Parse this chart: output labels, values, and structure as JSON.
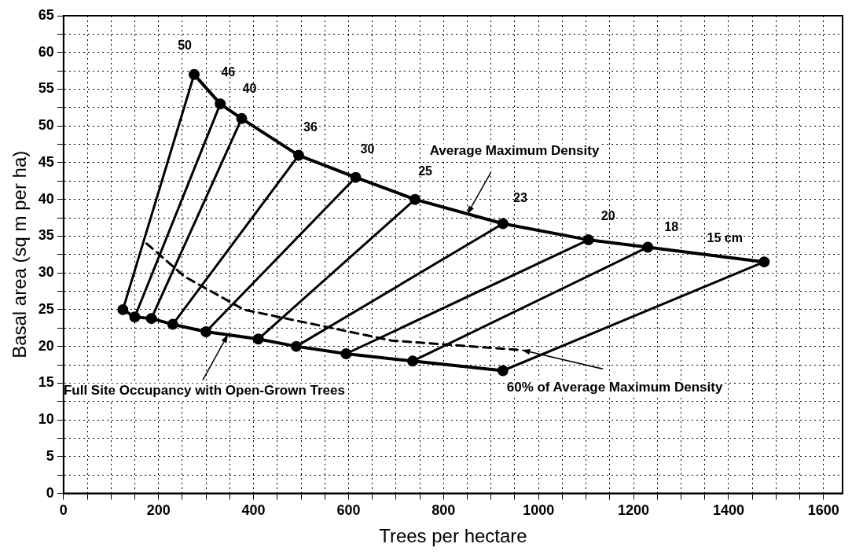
{
  "chart_data": {
    "type": "line",
    "xlabel": "Trees per hectare",
    "ylabel": "Basal area (sq m per ha)",
    "xlim": [
      0,
      1640
    ],
    "ylim": [
      0,
      65
    ],
    "xticks": [
      0,
      {
        "value": 50,
        "label": null
      },
      200,
      {
        "value": 100,
        "label": null
      },
      {
        "value": 150,
        "label": null
      },
      {
        "value": 250,
        "label": null
      },
      {
        "value": 300,
        "label": null
      },
      {
        "value": 350,
        "label": null
      },
      400,
      {
        "value": 450,
        "label": null
      },
      {
        "value": 500,
        "label": null
      },
      {
        "value": 550,
        "label": null
      },
      600,
      {
        "value": 650,
        "label": null
      },
      {
        "value": 700,
        "label": null
      },
      {
        "value": 750,
        "label": null
      },
      800,
      {
        "value": 850,
        "label": null
      },
      {
        "value": 900,
        "label": null
      },
      {
        "value": 950,
        "label": null
      },
      1000,
      {
        "value": 1050,
        "label": null
      },
      {
        "value": 1100,
        "label": null
      },
      {
        "value": 1150,
        "label": null
      },
      1200,
      {
        "value": 1250,
        "label": null
      },
      {
        "value": 1300,
        "label": null
      },
      {
        "value": 1350,
        "label": null
      },
      1400,
      {
        "value": 1450,
        "label": null
      },
      {
        "value": 1500,
        "label": null
      },
      {
        "value": 1550,
        "label": null
      },
      1600
    ],
    "yticks": [
      0,
      {
        "value": 2.5,
        "label": null
      },
      5,
      {
        "value": 7.5,
        "label": null
      },
      10,
      {
        "value": 12.5,
        "label": null
      },
      15,
      {
        "value": 17.5,
        "label": null
      },
      20,
      {
        "value": 22.5,
        "label": null
      },
      25,
      {
        "value": 27.5,
        "label": null
      },
      30,
      {
        "value": 32.5,
        "label": null
      },
      35,
      {
        "value": 37.5,
        "label": null
      },
      40,
      {
        "value": 42.5,
        "label": null
      },
      45,
      {
        "value": 47.5,
        "label": null
      },
      50,
      {
        "value": 52.5,
        "label": null
      },
      55,
      {
        "value": 57.5,
        "label": null
      },
      60,
      {
        "value": 62.5,
        "label": null
      },
      65
    ],
    "grid": true,
    "legend": false,
    "series": [
      {
        "color": "#000000",
        "marker": "circle",
        "x": [
          275,
          330,
          375,
          495,
          615,
          740,
          925,
          1105,
          1230,
          1475
        ],
        "values": [
          57,
          53,
          51,
          46,
          43,
          40,
          36.7,
          34.5,
          33.5,
          31.5
        ]
      },
      {
        "color": "#000000",
        "marker": "circle",
        "x": [
          125,
          150,
          185,
          230,
          300,
          410,
          490,
          595,
          735,
          925
        ],
        "values": [
          25,
          24,
          23.8,
          23,
          22,
          21,
          20,
          19,
          18,
          16.7
        ]
      },
      {
        "color": "#000000",
        "line_style": "dashed",
        "x": [
          175,
          255,
          380,
          690,
          965
        ],
        "values": [
          34,
          29.5,
          25,
          20.8,
          19.5
        ]
      },
      {
        "color": "#000000",
        "x": [
          275,
          125
        ],
        "values": [
          57,
          25
        ]
      },
      {
        "color": "#000000",
        "x": [
          330,
          150
        ],
        "values": [
          53,
          24
        ]
      },
      {
        "color": "#000000",
        "x": [
          375,
          185
        ],
        "values": [
          51,
          23.8
        ]
      },
      {
        "color": "#000000",
        "x": [
          495,
          230
        ],
        "values": [
          46,
          23
        ]
      },
      {
        "color": "#000000",
        "x": [
          615,
          300
        ],
        "values": [
          43,
          22
        ]
      },
      {
        "color": "#000000",
        "x": [
          740,
          410
        ],
        "values": [
          40,
          21
        ]
      },
      {
        "color": "#000000",
        "x": [
          925,
          490
        ],
        "values": [
          36.7,
          20
        ]
      },
      {
        "color": "#000000",
        "x": [
          1105,
          595
        ],
        "values": [
          34.5,
          19
        ]
      },
      {
        "color": "#000000",
        "x": [
          1230,
          735
        ],
        "values": [
          33.5,
          18
        ]
      },
      {
        "color": "#000000",
        "x": [
          1475,
          925
        ],
        "values": [
          31.5,
          16.7
        ]
      }
    ],
    "annotations": [
      {
        "text": "50",
        "x": 275,
        "y": 57
      },
      {
        "text": "46",
        "x": 330,
        "y": 53
      },
      {
        "text": "40",
        "x": 375,
        "y": 51
      },
      {
        "text": "36",
        "x": 495,
        "y": 46
      },
      {
        "text": "30",
        "x": 615,
        "y": 43
      },
      {
        "text": "25",
        "x": 740,
        "y": 40
      },
      {
        "text": "23",
        "x": 925,
        "y": 36.7
      },
      {
        "text": "20",
        "x": 1105,
        "y": 34.5
      },
      {
        "text": "18",
        "x": 1230,
        "y": 33.5
      },
      {
        "text": "15 cm",
        "x": 1475,
        "y": 31.5
      },
      {
        "text": "Average Maximum Density",
        "x": 850,
        "y": 38
      },
      {
        "text": "Full Site Occupancy with Open-Grown Trees",
        "x": 346,
        "y": 21.6
      },
      {
        "text": "60% of Average Maximum Density",
        "x": 965,
        "y": 19.5
      }
    ]
  }
}
